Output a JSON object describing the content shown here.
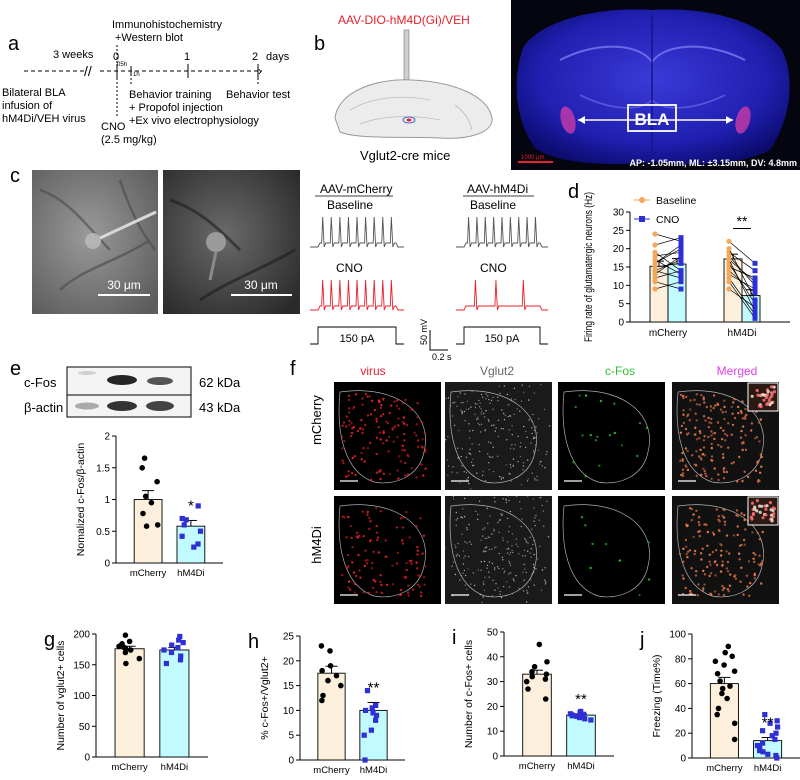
{
  "panels": {
    "a": {
      "letter": "a",
      "interval_label": "3 weeks",
      "timeline_ticks": [
        "0",
        "1",
        "2"
      ],
      "units": "days",
      "tick_05h": "05h",
      "tick_1h": "1h",
      "top_note_1": "Immunohistochemistry",
      "top_note_2": "+Western blot",
      "infusion_1": "Bilateral BLA",
      "infusion_2": "infusion of",
      "infusion_3": "hM4Di/VEH virus",
      "cno_1": "CNO",
      "cno_2": "(2.5 mg/kg)",
      "training_1": "Behavior training",
      "training_2": "+ Propofol injection",
      "training_3": "+Ex vivo electrophysiology",
      "behavior_test": "Behavior test"
    },
    "b": {
      "letter": "b",
      "virus_label": "AAV-DIO-hM4D(Gi)/VEH",
      "mouse_label": "Vglut2-cre mice",
      "region_label": "BLA",
      "scale_bar": "1000 μm",
      "coordinates": "AP: -1.05mm, ML: ±3.15mm, DV: 4.8mm"
    },
    "c": {
      "letter": "c",
      "scale_1": "30 μm",
      "scale_2": "30 μm",
      "group_1": "AAV-mCherry",
      "group_2": "AAV-hM4Di",
      "baseline": "Baseline",
      "cno": "CNO",
      "current": "150 pA",
      "mv_scale": "50 mV",
      "time_scale": "0.2 s"
    },
    "e": {
      "letter": "e",
      "band_1": "c-Fos",
      "band_2": "β-actin",
      "kda_1": "62 kDa",
      "kda_2": "43 kDa"
    },
    "f": {
      "letter": "f",
      "channels": [
        "virus",
        "Vglut2",
        "c-Fos",
        "Merged"
      ],
      "rows": [
        "mCherry",
        "hM4Di"
      ]
    }
  },
  "colors": {
    "mcherry_fill": "#fcf0dc",
    "hm4di_fill": "#c2fbff",
    "baseline_dots": "#f2a75a",
    "cno_dots": "#2f2fd6",
    "virus_red": "#e8202a",
    "cfos_green": "#2fc02f",
    "merged_magenta": "#e040e8"
  },
  "chart_data": [
    {
      "panel": "d",
      "type": "bar",
      "letter": "d",
      "ylabel": "Firing rate of glutamatergic neurons (Hz)",
      "categories": [
        "mCherry",
        "hM4Di"
      ],
      "legend": [
        "Baseline",
        "CNO"
      ],
      "legend_position": "top-right",
      "series": [
        {
          "name": "Baseline",
          "values": [
            15.2,
            17.2
          ],
          "sem": [
            1.4,
            1.3
          ]
        },
        {
          "name": "CNO",
          "values": [
            15.8,
            7.2
          ],
          "sem": [
            1.5,
            1.6
          ]
        }
      ],
      "paired_points": [
        [
          [
            9,
            11
          ],
          [
            12,
            14
          ],
          [
            13,
            18
          ],
          [
            14,
            12
          ],
          [
            15,
            16
          ],
          [
            16,
            20
          ],
          [
            17,
            13
          ],
          [
            18,
            19
          ],
          [
            19,
            14
          ],
          [
            21,
            23
          ],
          [
            24,
            22
          ],
          [
            11,
            9
          ],
          [
            14,
            17
          ],
          [
            16,
            21
          ]
        ],
        [
          [
            9,
            4
          ],
          [
            12,
            2
          ],
          [
            14,
            8
          ],
          [
            15,
            12
          ],
          [
            16,
            5
          ],
          [
            17,
            3
          ],
          [
            18,
            10
          ],
          [
            19,
            14
          ],
          [
            20,
            6
          ],
          [
            22,
            16
          ],
          [
            11,
            1
          ],
          [
            13,
            9
          ],
          [
            17,
            11
          ]
        ]
      ],
      "yticks": [
        0,
        5,
        10,
        15,
        20,
        25,
        30
      ],
      "ylim": [
        0,
        30
      ],
      "significance": "**"
    },
    {
      "panel": "e",
      "type": "bar",
      "ylabel": "Nomalized c-Fos/β-actin",
      "categories": [
        "mCherry",
        "hM4Di"
      ],
      "values": [
        1.0,
        0.58
      ],
      "sem": [
        0.14,
        0.09
      ],
      "points": [
        [
          1.65,
          1.5,
          1.28,
          1.05,
          0.95,
          0.78,
          0.6,
          0.58
        ],
        [
          0.9,
          0.7,
          0.68,
          0.6,
          0.5,
          0.42,
          0.3,
          0.25
        ]
      ],
      "yticks": [
        0.0,
        0.5,
        1.0,
        1.5,
        2.0
      ],
      "ylim": [
        0,
        2.0
      ],
      "significance": "*"
    },
    {
      "panel": "g",
      "type": "bar",
      "letter": "g",
      "ylabel": "Number of vglut2+ cells",
      "categories": [
        "mCherry",
        "hM4Di"
      ],
      "values": [
        176,
        174
      ],
      "sem": [
        4,
        4
      ],
      "points": [
        [
          198,
          188,
          184,
          180,
          178,
          176,
          174,
          170,
          160,
          152
        ],
        [
          196,
          190,
          186,
          182,
          178,
          174,
          170,
          164,
          158,
          152
        ]
      ],
      "yticks": [
        0,
        50,
        100,
        150,
        200
      ],
      "ylim": [
        0,
        200
      ],
      "significance": ""
    },
    {
      "panel": "h",
      "type": "bar",
      "letter": "h",
      "ylabel": "% c-Fos+/Vglut2+",
      "categories": [
        "mCherry",
        "hM4Di"
      ],
      "values": [
        17.5,
        10.0
      ],
      "sem": [
        1.4,
        1.6
      ],
      "points": [
        [
          23,
          22,
          19,
          18,
          17,
          16,
          15,
          13,
          12
        ],
        [
          14,
          11,
          10.5,
          10,
          9.5,
          9,
          8,
          6,
          5,
          0
        ]
      ],
      "yticks": [
        0,
        5,
        10,
        15,
        20,
        25
      ],
      "ylim": [
        0,
        25
      ],
      "significance": "**"
    },
    {
      "panel": "i",
      "type": "bar",
      "letter": "i",
      "ylabel": "Number of c-Fos+ cells",
      "categories": [
        "mCherry",
        "hM4Di"
      ],
      "values": [
        33,
        16.5
      ],
      "sem": [
        1.6,
        0.5
      ],
      "points": [
        [
          45,
          38,
          36,
          34,
          33,
          32,
          31,
          30,
          27,
          23
        ],
        [
          18,
          17.5,
          17,
          16.8,
          16.5,
          16.2,
          16,
          15.5,
          15,
          14.5
        ]
      ],
      "yticks": [
        0,
        10,
        20,
        30,
        40,
        50
      ],
      "ylim": [
        0,
        50
      ],
      "significance": "**"
    },
    {
      "panel": "j",
      "type": "bar",
      "letter": "j",
      "ylabel": "Freezing (Time%)",
      "categories": [
        "mCherry",
        "hM4Di"
      ],
      "values": [
        60,
        14
      ],
      "sem": [
        5,
        2.5
      ],
      "points": [
        [
          90,
          85,
          82,
          78,
          75,
          70,
          68,
          62,
          58,
          56,
          52,
          48,
          40,
          35,
          28,
          15
        ],
        [
          35,
          30,
          28,
          25,
          22,
          20,
          18,
          15,
          12,
          10,
          8,
          6,
          5,
          3,
          2,
          0
        ]
      ],
      "yticks": [
        0,
        20,
        40,
        60,
        80,
        100
      ],
      "ylim": [
        0,
        100
      ],
      "significance": "**"
    }
  ]
}
